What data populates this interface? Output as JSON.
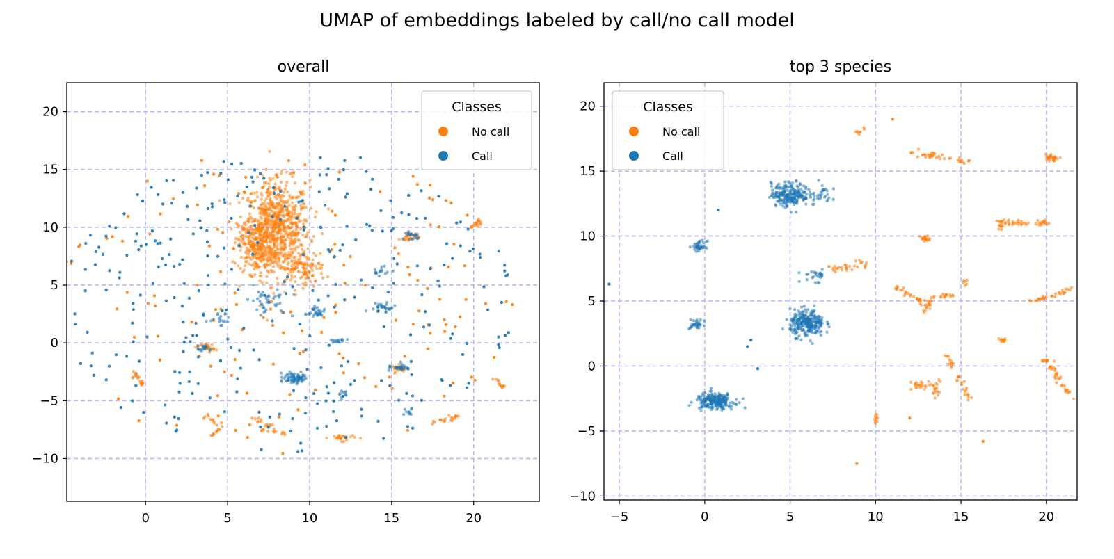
{
  "suptitle": "UMAP of embeddings labeled by call/no call model",
  "colors": {
    "no_call": "#ff7f0e",
    "call": "#1f77b4",
    "grid": "#b3b3ff"
  },
  "chart_data": [
    {
      "type": "scatter",
      "title": "overall",
      "xlim": [
        -4.8,
        24
      ],
      "ylim": [
        -13.7,
        22.5
      ],
      "xticks": [
        0,
        5,
        10,
        15,
        20
      ],
      "yticks": [
        -10,
        -5,
        0,
        5,
        10,
        15,
        20
      ],
      "grid": true,
      "legend": {
        "title": "Classes",
        "placement": "top-right",
        "entries": [
          "No call",
          "Call"
        ]
      },
      "series": [
        {
          "name": "No call",
          "color": "#ff7f0e",
          "clusters": [
            {
              "cx": 8.0,
              "cy": 10.0,
              "rx": 2.0,
              "ry": 4.0,
              "n": 700
            },
            {
              "cx": 6.8,
              "cy": 8.5,
              "rx": 1.2,
              "ry": 2.5,
              "n": 250
            },
            {
              "cx": 9.5,
              "cy": 6.5,
              "rx": 1.5,
              "ry": 1.5,
              "n": 120
            },
            {
              "cx": 3.8,
              "cy": -0.4,
              "rx": 0.4,
              "ry": 0.4,
              "n": 25
            },
            {
              "cx": 16.1,
              "cy": 9.2,
              "rx": 0.6,
              "ry": 0.3,
              "n": 25
            },
            {
              "cx": 15.5,
              "cy": -2.2,
              "rx": 0.5,
              "ry": 0.3,
              "n": 25
            },
            {
              "cx": 12.0,
              "cy": -8.2,
              "rx": 0.8,
              "ry": 0.3,
              "n": 25
            },
            {
              "cx": 20.2,
              "cy": 10.3,
              "rx": 0.3,
              "ry": 0.3,
              "n": 10
            }
          ],
          "segments": [
            {
              "x1": -0.8,
              "y1": -2.4,
              "x2": -0.2,
              "y2": -3.6,
              "n": 20
            },
            {
              "x1": 21.2,
              "y1": -3.0,
              "x2": 21.8,
              "y2": -3.8,
              "n": 12
            },
            {
              "x1": 17.5,
              "y1": -6.8,
              "x2": 19.0,
              "y2": -6.4,
              "n": 20
            },
            {
              "x1": 3.5,
              "y1": -6.3,
              "x2": 4.6,
              "y2": -7.0,
              "n": 12
            },
            {
              "x1": 4.0,
              "y1": -8.0,
              "x2": 4.6,
              "y2": -7.5,
              "n": 10
            },
            {
              "x1": 6.5,
              "y1": -6.5,
              "x2": 8.0,
              "y2": -7.5,
              "n": 15
            },
            {
              "x1": 7.0,
              "y1": -7.5,
              "x2": 8.5,
              "y2": -7.8,
              "n": 12
            },
            {
              "x1": 19.8,
              "y1": 10.0,
              "x2": 20.4,
              "y2": 10.6,
              "n": 10
            }
          ],
          "scatter_count": 160
        },
        {
          "name": "Call",
          "color": "#1f77b4",
          "clusters": [
            {
              "cx": 9.0,
              "cy": -3.0,
              "rx": 0.8,
              "ry": 0.6,
              "n": 70
            },
            {
              "cx": 10.3,
              "cy": 2.5,
              "rx": 0.5,
              "ry": 0.5,
              "n": 30
            },
            {
              "cx": 14.5,
              "cy": 3.0,
              "rx": 0.7,
              "ry": 0.4,
              "n": 30
            },
            {
              "cx": 15.5,
              "cy": -2.1,
              "rx": 0.6,
              "ry": 0.4,
              "n": 25
            },
            {
              "cx": 16.2,
              "cy": 9.3,
              "rx": 0.5,
              "ry": 0.4,
              "n": 20
            },
            {
              "cx": 14.3,
              "cy": 6.2,
              "rx": 0.5,
              "ry": 0.4,
              "n": 15
            },
            {
              "cx": 11.8,
              "cy": 0.2,
              "rx": 0.5,
              "ry": 0.4,
              "n": 15
            },
            {
              "cx": 7.5,
              "cy": 3.5,
              "rx": 1.5,
              "ry": 1.2,
              "n": 40
            },
            {
              "cx": 3.6,
              "cy": -0.4,
              "rx": 0.4,
              "ry": 0.3,
              "n": 15
            },
            {
              "cx": 12.0,
              "cy": -4.5,
              "rx": 0.3,
              "ry": 0.4,
              "n": 10
            },
            {
              "cx": 16.0,
              "cy": -6.0,
              "rx": 0.4,
              "ry": 0.3,
              "n": 10
            },
            {
              "cx": 4.5,
              "cy": 2.0,
              "rx": 0.6,
              "ry": 0.6,
              "n": 15
            }
          ],
          "segments": [],
          "scatter_count": 330
        }
      ]
    },
    {
      "type": "scatter",
      "title": "top 3 species",
      "xlim": [
        -5.9,
        21.8
      ],
      "ylim": [
        -10.3,
        21.8
      ],
      "xticks": [
        -5,
        0,
        5,
        10,
        15,
        20
      ],
      "yticks": [
        -10,
        -5,
        0,
        5,
        10,
        15,
        20
      ],
      "grid": true,
      "legend": {
        "title": "Classes",
        "placement": "top-left",
        "entries": [
          "No call",
          "Call"
        ]
      },
      "series": [
        {
          "name": "No call",
          "color": "#ff7f0e",
          "clusters": [
            {
              "cx": 20.3,
              "cy": 16.0,
              "rx": 0.4,
              "ry": 0.4,
              "n": 30
            },
            {
              "cx": 12.9,
              "cy": 9.8,
              "rx": 0.4,
              "ry": 0.3,
              "n": 20
            },
            {
              "cx": 17.5,
              "cy": 2.0,
              "rx": 0.3,
              "ry": 0.2,
              "n": 12
            },
            {
              "cx": 12.5,
              "cy": -1.5,
              "rx": 0.5,
              "ry": 0.4,
              "n": 20
            },
            {
              "cx": 13.5,
              "cy": -1.8,
              "rx": 0.4,
              "ry": 0.5,
              "n": 20
            },
            {
              "cx": 10.0,
              "cy": -4.0,
              "rx": 0.2,
              "ry": 0.3,
              "n": 10
            },
            {
              "cx": 13.0,
              "cy": 4.6,
              "rx": 0.4,
              "ry": 0.4,
              "n": 15
            },
            {
              "cx": 20.0,
              "cy": 0.4,
              "rx": 0.4,
              "ry": 0.1,
              "n": 10
            }
          ],
          "segments": [
            {
              "x1": 8.8,
              "y1": 17.8,
              "x2": 9.3,
              "y2": 18.2,
              "n": 8
            },
            {
              "x1": 12.0,
              "y1": 16.5,
              "x2": 15.5,
              "y2": 15.7,
              "n": 40
            },
            {
              "x1": 17.0,
              "y1": 11.0,
              "x2": 20.0,
              "y2": 11.0,
              "n": 40
            },
            {
              "x1": 17.5,
              "y1": 11.2,
              "x2": 17.2,
              "y2": 10.0,
              "n": 8
            },
            {
              "x1": 7.2,
              "y1": 7.5,
              "x2": 8.8,
              "y2": 7.7,
              "n": 20
            },
            {
              "x1": 9.0,
              "y1": 8.0,
              "x2": 9.5,
              "y2": 7.7,
              "n": 8
            },
            {
              "x1": 11.0,
              "y1": 6.2,
              "x2": 12.8,
              "y2": 5.0,
              "n": 25
            },
            {
              "x1": 13.0,
              "y1": 5.1,
              "x2": 14.5,
              "y2": 5.4,
              "n": 20
            },
            {
              "x1": 19.0,
              "y1": 4.8,
              "x2": 21.5,
              "y2": 6.0,
              "n": 30
            },
            {
              "x1": 20.2,
              "y1": 0.0,
              "x2": 21.5,
              "y2": -2.5,
              "n": 30
            },
            {
              "x1": 14.2,
              "y1": 0.8,
              "x2": 15.5,
              "y2": -2.5,
              "n": 30
            },
            {
              "x1": 15.0,
              "y1": 6.5,
              "x2": 15.4,
              "y2": 6.5,
              "n": 6
            }
          ],
          "singles": [
            [
              11.0,
              19.0
            ],
            [
              12.0,
              -4.0
            ],
            [
              16.3,
              -5.8
            ],
            [
              8.9,
              -7.5
            ]
          ]
        },
        {
          "name": "Call",
          "color": "#1f77b4",
          "clusters": [
            {
              "cx": 5.0,
              "cy": 13.2,
              "rx": 1.1,
              "ry": 0.9,
              "n": 220
            },
            {
              "cx": 6.8,
              "cy": 13.3,
              "rx": 0.6,
              "ry": 0.8,
              "n": 30
            },
            {
              "cx": 6.0,
              "cy": 3.3,
              "rx": 1.0,
              "ry": 1.0,
              "n": 260
            },
            {
              "cx": 0.6,
              "cy": -2.7,
              "rx": 1.1,
              "ry": 0.6,
              "n": 220
            },
            {
              "cx": -0.3,
              "cy": 9.2,
              "rx": 0.4,
              "ry": 0.4,
              "n": 40
            },
            {
              "cx": -0.5,
              "cy": 3.2,
              "rx": 0.4,
              "ry": 0.4,
              "n": 30
            },
            {
              "cx": 6.5,
              "cy": 7.0,
              "rx": 0.8,
              "ry": 0.5,
              "n": 25
            }
          ],
          "segments": [],
          "singles": [
            [
              -5.6,
              6.3
            ],
            [
              0.8,
              12.0
            ],
            [
              3.1,
              -0.2
            ],
            [
              2.5,
              1.5
            ],
            [
              2.7,
              2.0
            ]
          ]
        }
      ]
    }
  ]
}
